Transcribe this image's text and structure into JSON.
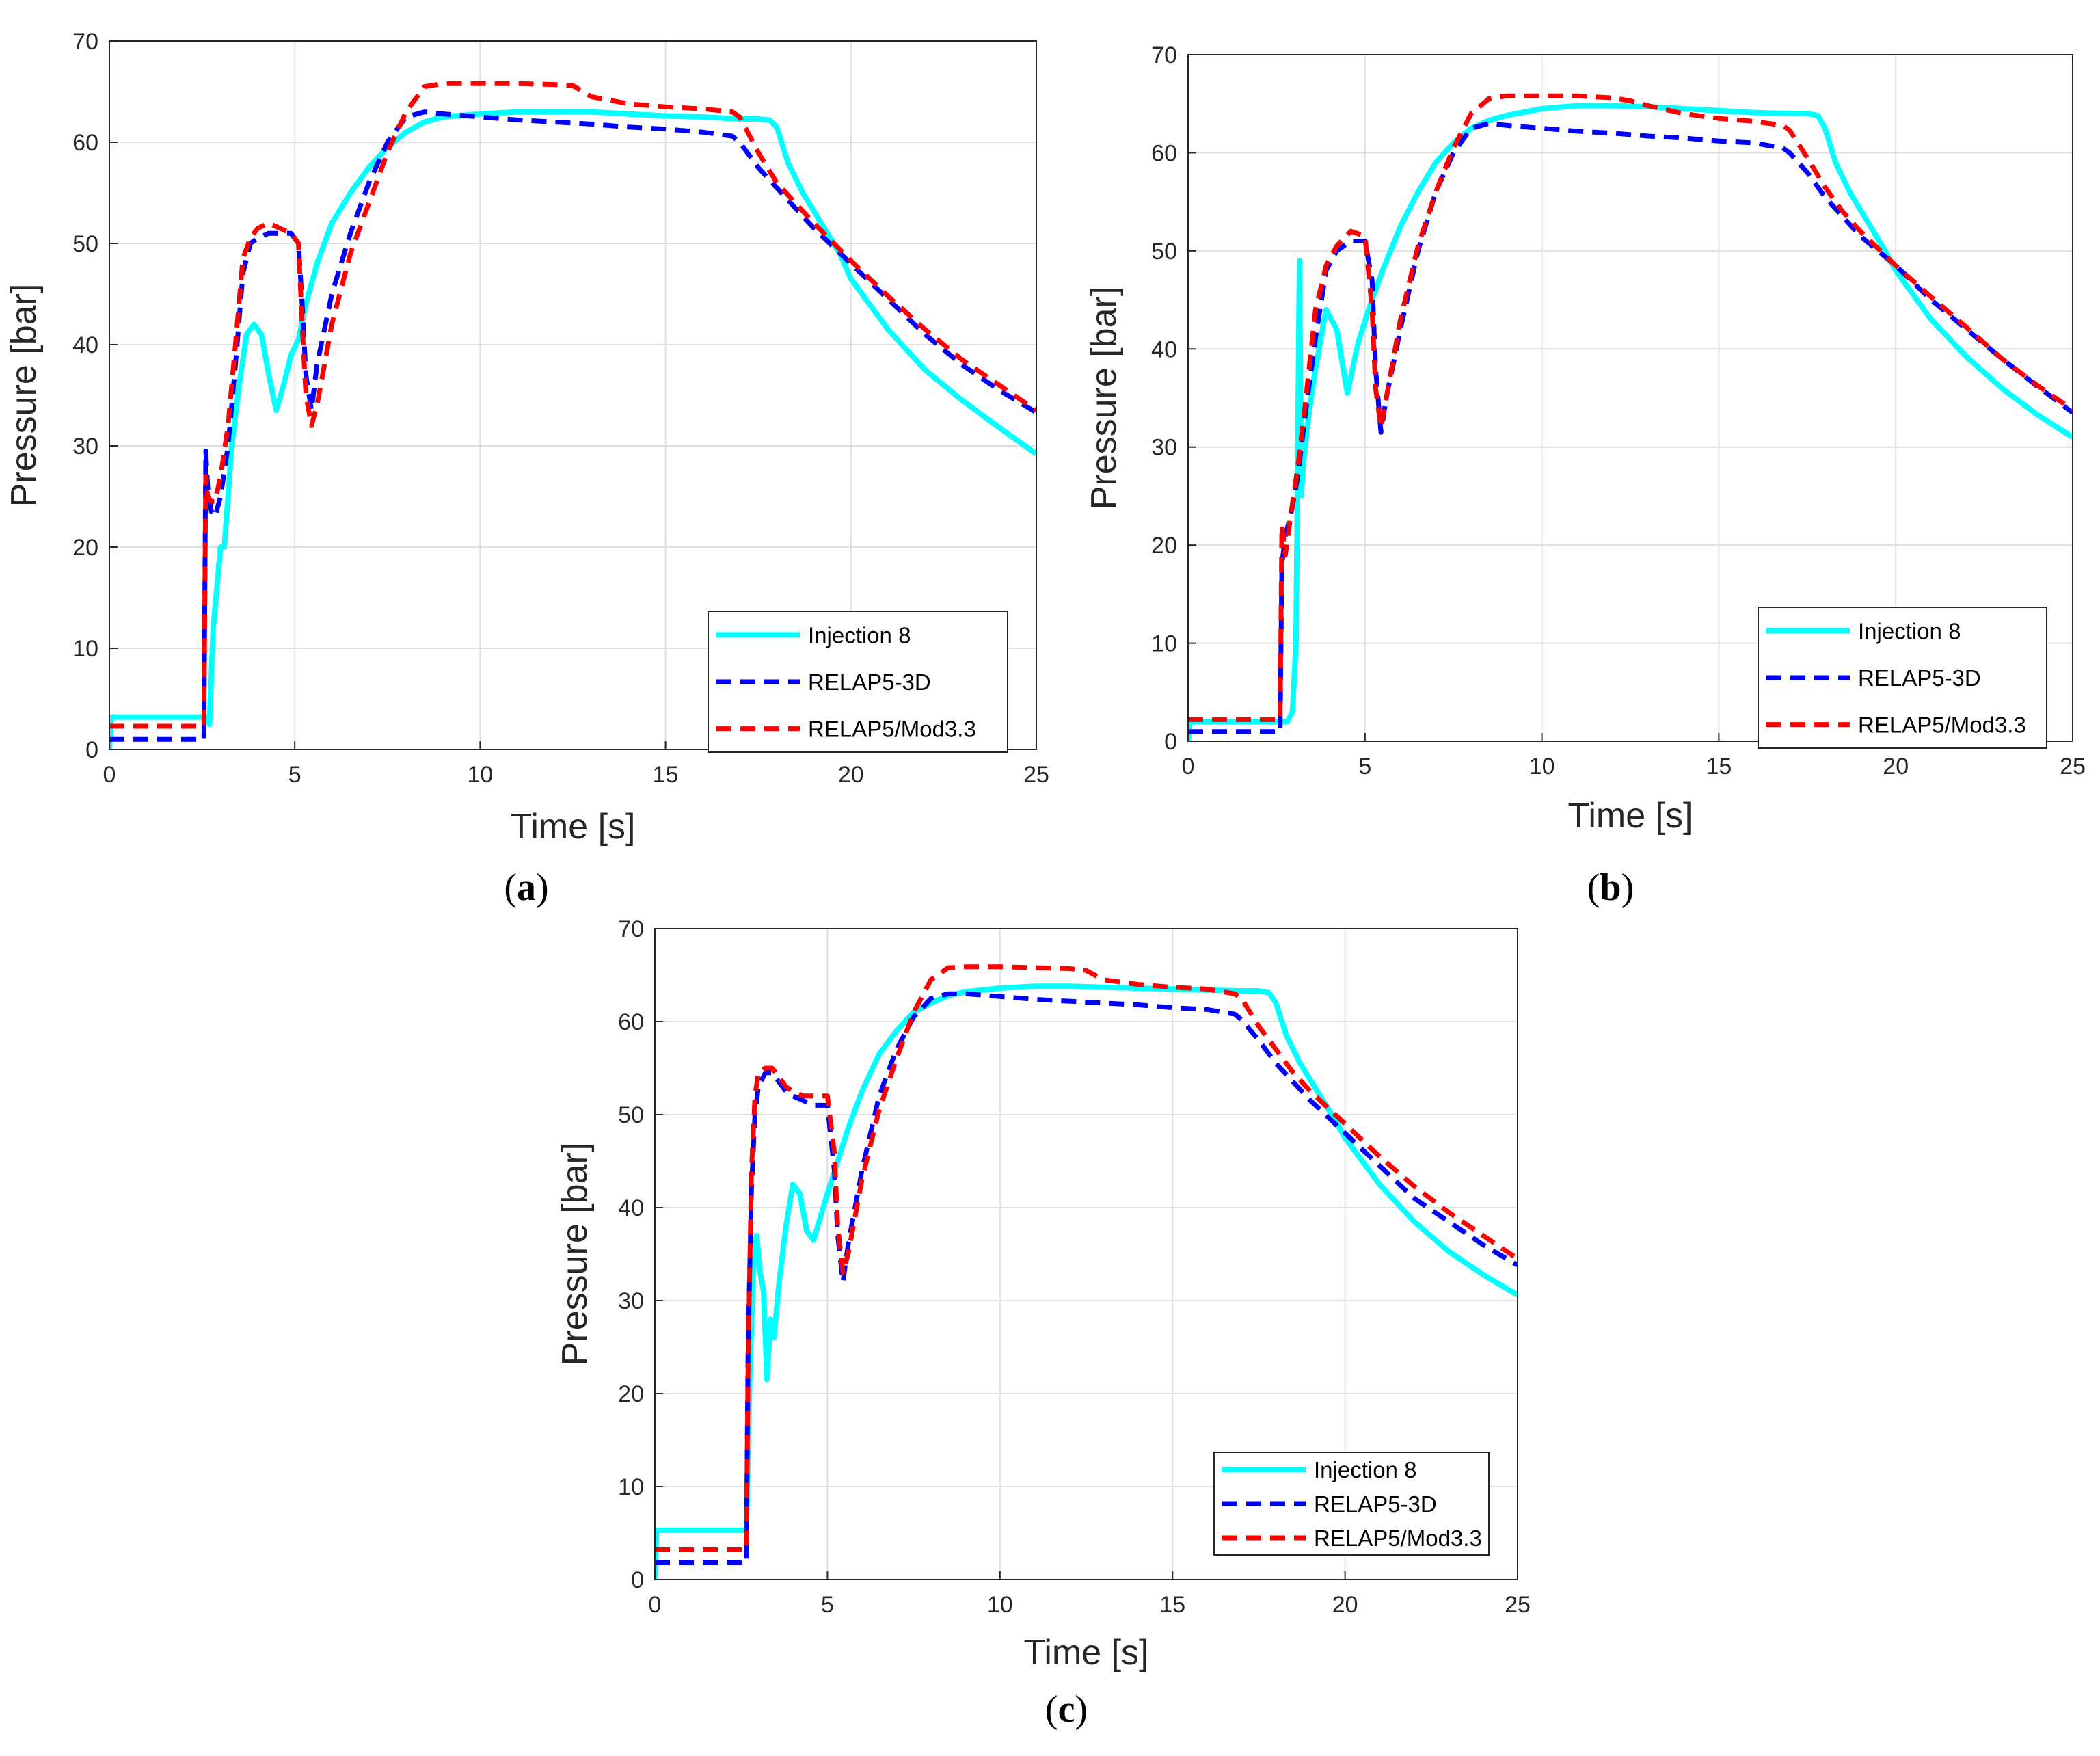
{
  "figure": {
    "panels": [
      {
        "caption_letter": "a"
      },
      {
        "caption_letter": "b"
      },
      {
        "caption_letter": "c"
      }
    ]
  },
  "series_styles": {
    "Injection 8": {
      "color": "#00ffff",
      "dash": "solid"
    },
    "RELAP5-3D": {
      "color": "#0000ff",
      "dash": "dashed"
    },
    "RELAP5/Mod3.3": {
      "color": "#ff0000",
      "dash": "dashed"
    }
  },
  "chart_data": [
    {
      "type": "line",
      "panel": "a",
      "xlabel": "Time [s]",
      "ylabel": "Pressure [bar]",
      "xlim": [
        0,
        25
      ],
      "ylim": [
        0,
        70
      ],
      "xticks": [
        0,
        5,
        10,
        15,
        20,
        25
      ],
      "yticks": [
        0,
        10,
        20,
        30,
        40,
        50,
        60,
        70
      ],
      "grid": true,
      "legend_position": "bottom-right",
      "series": [
        {
          "name": "Injection 8",
          "x": [
            0,
            0.05,
            2.55,
            2.6,
            2.65,
            2.7,
            2.8,
            2.9,
            3.0,
            3.1,
            3.2,
            3.3,
            3.5,
            3.7,
            3.9,
            4.1,
            4.3,
            4.5,
            4.7,
            4.9,
            5.1,
            5.3,
            5.6,
            6,
            6.5,
            7,
            7.5,
            8,
            8.5,
            9,
            10,
            11,
            12,
            13,
            14,
            15,
            16,
            17,
            17.5,
            17.8,
            18,
            18.3,
            18.7,
            19.2,
            19.7,
            20,
            21,
            22,
            23,
            24,
            25
          ],
          "y": [
            0,
            3.2,
            3.2,
            3.2,
            3,
            2.5,
            12,
            16,
            20,
            20,
            25,
            30,
            36,
            41,
            42,
            41,
            37,
            33.5,
            36,
            39,
            40.5,
            44,
            48,
            52,
            55,
            57.5,
            59.5,
            61,
            62,
            62.5,
            62.8,
            63,
            63,
            63,
            62.8,
            62.6,
            62.5,
            62.3,
            62.3,
            62.2,
            61.5,
            58,
            55,
            52,
            49,
            46.5,
            41.5,
            37.5,
            34.5,
            31.8,
            29.2
          ]
        },
        {
          "name": "RELAP5-3D",
          "x": [
            0,
            2.5,
            2.55,
            2.6,
            2.65,
            2.75,
            2.85,
            3.0,
            3.2,
            3.4,
            3.6,
            3.8,
            4.0,
            4.3,
            4.6,
            4.9,
            5.1,
            5.2,
            5.3,
            5.45,
            5.6,
            6,
            6.5,
            7,
            7.5,
            8,
            8.5,
            9,
            10,
            11,
            12,
            13,
            14,
            15,
            16,
            16.8,
            17,
            17.5,
            18,
            18.5,
            19,
            20,
            21,
            22,
            23,
            24,
            25
          ],
          "y": [
            1,
            1,
            1,
            29.5,
            26,
            23.5,
            23,
            25,
            30,
            38,
            47,
            50,
            50.5,
            51,
            51,
            51,
            50,
            44,
            37,
            33.5,
            38,
            45,
            51,
            56,
            60,
            62.5,
            63,
            62.8,
            62.5,
            62.2,
            62,
            61.8,
            61.5,
            61.3,
            61,
            60.6,
            60,
            57.5,
            55.5,
            53.5,
            51.5,
            48,
            44.5,
            41,
            38,
            35.5,
            33.3
          ]
        },
        {
          "name": "RELAP5/Mod3.3",
          "x": [
            0,
            2.5,
            2.55,
            2.6,
            2.65,
            2.75,
            2.85,
            3.0,
            3.2,
            3.4,
            3.6,
            3.8,
            4.0,
            4.3,
            4.6,
            4.9,
            5.1,
            5.2,
            5.3,
            5.45,
            5.6,
            6,
            6.5,
            7,
            7.5,
            8,
            8.5,
            9,
            10,
            11,
            12,
            12.5,
            13,
            14,
            15,
            16,
            16.8,
            17,
            17.5,
            18,
            18.5,
            19,
            20,
            21,
            22,
            23,
            24,
            25
          ],
          "y": [
            2.3,
            2.3,
            2.3,
            27,
            25,
            24.5,
            24.5,
            27,
            32,
            40,
            48.5,
            50.5,
            51.5,
            52,
            51.5,
            51,
            50,
            42,
            35,
            32,
            34,
            42,
            49,
            54,
            59,
            63,
            65.5,
            65.8,
            65.8,
            65.8,
            65.7,
            65.6,
            64.5,
            63.8,
            63.5,
            63.3,
            63,
            62.5,
            59,
            56,
            54,
            52,
            48.3,
            44.8,
            41.5,
            38.5,
            36,
            33.5
          ]
        }
      ]
    },
    {
      "type": "line",
      "panel": "b",
      "xlabel": "Time [s]",
      "ylabel": "Pressure [bar]",
      "xlim": [
        0,
        25
      ],
      "ylim": [
        0,
        70
      ],
      "xticks": [
        0,
        5,
        10,
        15,
        20,
        25
      ],
      "yticks": [
        0,
        10,
        20,
        30,
        40,
        50,
        60,
        70
      ],
      "grid": true,
      "legend_position": "bottom-right",
      "series": [
        {
          "name": "Injection 8",
          "x": [
            0,
            0.05,
            2.6,
            2.8,
            2.95,
            3.05,
            3.1,
            3.15,
            3.2,
            3.25,
            3.4,
            3.6,
            3.9,
            4.2,
            4.5,
            4.8,
            5.1,
            5.5,
            6,
            6.5,
            7,
            7.5,
            8,
            8.5,
            9,
            10,
            11,
            12,
            13,
            14,
            15,
            16,
            17,
            17.5,
            17.8,
            18,
            18.3,
            18.7,
            19.2,
            19.7,
            20,
            21,
            22,
            23,
            24,
            25
          ],
          "y": [
            0,
            2,
            2,
            2,
            3,
            10,
            30,
            49,
            25,
            28,
            33,
            38,
            44,
            42,
            35.5,
            40.5,
            44,
            48,
            52.5,
            56,
            59,
            61,
            62.5,
            63.3,
            63.8,
            64.5,
            64.8,
            64.8,
            64.7,
            64.5,
            64.3,
            64.1,
            64,
            64,
            63.8,
            62.5,
            59,
            56,
            53,
            50,
            48,
            43,
            39.2,
            36,
            33.3,
            31
          ]
        },
        {
          "name": "RELAP5-3D",
          "x": [
            0,
            2.55,
            2.6,
            2.65,
            2.75,
            2.9,
            3.1,
            3.3,
            3.6,
            3.9,
            4.2,
            4.6,
            5.0,
            5.2,
            5.3,
            5.45,
            5.6,
            6,
            6.5,
            7,
            7.5,
            8,
            8.5,
            9,
            10,
            11,
            12,
            13,
            14,
            15,
            16,
            16.8,
            17,
            17.5,
            18,
            18.5,
            19,
            20,
            21,
            22,
            23,
            24,
            25
          ],
          "y": [
            1,
            1,
            1,
            18,
            21,
            23,
            27,
            33,
            41,
            48,
            50,
            51,
            51,
            47,
            38,
            31.5,
            35,
            42,
            50,
            56,
            60,
            62.5,
            63,
            62.8,
            62.5,
            62.2,
            62,
            61.7,
            61.5,
            61.2,
            61,
            60.5,
            60,
            58,
            55.5,
            53.5,
            51.5,
            48.5,
            45,
            42,
            39,
            36.2,
            33.5
          ]
        },
        {
          "name": "RELAP5/Mod3.3",
          "x": [
            0,
            2.55,
            2.6,
            2.65,
            2.75,
            2.9,
            3.1,
            3.3,
            3.6,
            3.9,
            4.2,
            4.6,
            5.0,
            5.2,
            5.3,
            5.45,
            5.6,
            6,
            6.5,
            7,
            7.5,
            8,
            8.5,
            9,
            10,
            11,
            12,
            12.5,
            13,
            14,
            15,
            16,
            16.8,
            17,
            17.5,
            18,
            18.5,
            19,
            20,
            21,
            22,
            23,
            24,
            25
          ],
          "y": [
            2.2,
            2.2,
            2.2,
            22,
            19,
            23,
            28,
            34,
            44,
            48.5,
            50.5,
            52,
            51.5,
            44,
            36,
            32,
            35,
            43,
            50.5,
            56,
            60.5,
            64,
            65.5,
            65.8,
            65.8,
            65.8,
            65.6,
            65.3,
            64.8,
            64,
            63.5,
            63.2,
            62.8,
            62.3,
            59.5,
            56.5,
            54,
            52,
            48.5,
            45.3,
            42.2,
            39,
            36.3,
            33.8
          ]
        }
      ]
    },
    {
      "type": "line",
      "panel": "c",
      "xlabel": "Time [s]",
      "ylabel": "Pressure [bar]",
      "xlim": [
        0,
        25
      ],
      "ylim": [
        0,
        70
      ],
      "xticks": [
        0,
        5,
        10,
        15,
        20,
        25
      ],
      "yticks": [
        0,
        10,
        20,
        30,
        40,
        50,
        60,
        70
      ],
      "grid": true,
      "legend_position": "bottom-right",
      "series": [
        {
          "name": "Injection 8",
          "x": [
            0,
            0.05,
            2.6,
            2.65,
            2.75,
            2.85,
            2.95,
            3.05,
            3.15,
            3.25,
            3.35,
            3.45,
            3.6,
            3.8,
            4.0,
            4.2,
            4.4,
            4.6,
            4.8,
            5.0,
            5.3,
            5.6,
            6,
            6.5,
            7,
            7.5,
            8,
            8.5,
            9,
            10,
            11,
            12,
            13,
            14,
            15,
            16,
            17,
            17.5,
            17.8,
            18,
            18.3,
            18.7,
            19.2,
            19.7,
            20,
            21,
            22,
            23,
            24,
            25
          ],
          "y": [
            0,
            5.3,
            5.3,
            5.3,
            22,
            33,
            37,
            33,
            31,
            21.5,
            28,
            26,
            32,
            38,
            42.5,
            41.5,
            37.5,
            36.5,
            39,
            41.5,
            45,
            48.5,
            52.5,
            56.5,
            59,
            61,
            62,
            62.8,
            63.2,
            63.6,
            63.8,
            63.8,
            63.7,
            63.6,
            63.5,
            63.4,
            63.3,
            63.3,
            63.1,
            62,
            58.5,
            55.5,
            52.5,
            49.5,
            47.5,
            42.5,
            38.5,
            35.3,
            32.8,
            30.6
          ]
        },
        {
          "name": "RELAP5-3D",
          "x": [
            0,
            2.6,
            2.65,
            2.7,
            2.8,
            2.9,
            3.0,
            3.2,
            3.4,
            3.6,
            3.8,
            4.0,
            4.3,
            4.6,
            5.0,
            5.2,
            5.3,
            5.45,
            5.6,
            6,
            6.5,
            7,
            7.5,
            8,
            8.5,
            9,
            10,
            11,
            12,
            13,
            14,
            15,
            16,
            16.8,
            17,
            17.5,
            18,
            18.5,
            19,
            20,
            21,
            22,
            23,
            24,
            25
          ],
          "y": [
            1.8,
            1.8,
            1.8,
            25,
            42,
            50,
            53,
            54.5,
            54.5,
            53.5,
            52.5,
            52,
            51.5,
            51,
            51,
            44,
            37,
            32,
            36,
            44,
            52,
            57,
            60.5,
            62.5,
            63,
            63,
            62.7,
            62.4,
            62.2,
            62,
            61.8,
            61.5,
            61.3,
            60.8,
            60.2,
            58,
            55.5,
            53.5,
            51.5,
            48,
            44.5,
            41,
            38.5,
            36,
            33.8
          ]
        },
        {
          "name": "RELAP5/Mod3.3",
          "x": [
            0,
            2.6,
            2.65,
            2.7,
            2.8,
            2.9,
            3.0,
            3.2,
            3.4,
            3.6,
            3.8,
            4.0,
            4.3,
            4.6,
            5.0,
            5.2,
            5.3,
            5.45,
            5.6,
            6,
            6.5,
            7,
            7.5,
            8,
            8.5,
            9,
            10,
            11,
            12,
            12.5,
            13,
            14,
            15,
            16,
            16.8,
            17,
            17.5,
            18,
            18.5,
            19,
            20,
            21,
            22,
            23,
            24,
            25
          ],
          "y": [
            3.2,
            3.2,
            3.2,
            23,
            44,
            52,
            54.5,
            55,
            55,
            54,
            53,
            52.5,
            52,
            52,
            52,
            46,
            38,
            33,
            35,
            43,
            50.5,
            56,
            61,
            64.5,
            65.8,
            65.9,
            65.9,
            65.8,
            65.7,
            65.5,
            64.5,
            64,
            63.7,
            63.5,
            63,
            62.5,
            59.5,
            57,
            54.5,
            52.5,
            49,
            45.5,
            42.3,
            39.5,
            37,
            34.5
          ]
        }
      ]
    }
  ]
}
